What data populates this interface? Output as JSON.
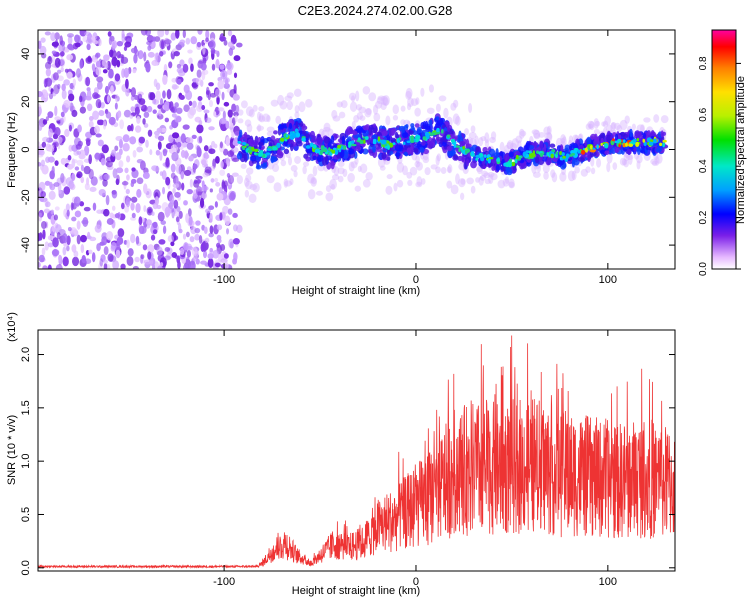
{
  "title": "C2E3.2024.274.02.00.G28",
  "chart_data": [
    {
      "type": "heatmap",
      "xlabel": "Height of straight line (km)",
      "ylabel": "Frequency (Hz)",
      "xlim": [
        -197,
        135
      ],
      "ylim": [
        -50,
        50
      ],
      "xticks": [
        -100,
        0,
        100
      ],
      "yticks": [
        -40,
        -20,
        0,
        20,
        40
      ],
      "colorbar": {
        "label": "Normalized spectral amplitude",
        "range": [
          0.0,
          0.93
        ],
        "ticks": [
          0.0,
          0.2,
          0.4,
          0.6,
          0.8
        ]
      },
      "trace_segments": [
        {
          "x": -92,
          "y": 3
        },
        {
          "x": -85,
          "y": -1
        },
        {
          "x": -78,
          "y": -2
        },
        {
          "x": -70,
          "y": 4
        },
        {
          "x": -62,
          "y": 7
        },
        {
          "x": -55,
          "y": 1
        },
        {
          "x": -45,
          "y": -1
        },
        {
          "x": -35,
          "y": 2
        },
        {
          "x": -25,
          "y": 5
        },
        {
          "x": -15,
          "y": 2
        },
        {
          "x": -5,
          "y": 4
        },
        {
          "x": 5,
          "y": 5
        },
        {
          "x": 12,
          "y": 8
        },
        {
          "x": 20,
          "y": 2
        },
        {
          "x": 30,
          "y": -3
        },
        {
          "x": 40,
          "y": -4
        },
        {
          "x": 48,
          "y": -6
        },
        {
          "x": 58,
          "y": -2
        },
        {
          "x": 68,
          "y": -1
        },
        {
          "x": 78,
          "y": -3
        },
        {
          "x": 88,
          "y": 0
        },
        {
          "x": 98,
          "y": 2
        },
        {
          "x": 108,
          "y": 3
        },
        {
          "x": 118,
          "y": 3
        },
        {
          "x": 130,
          "y": 3
        }
      ],
      "noise_region_x": [
        -197,
        -92
      ]
    },
    {
      "type": "line",
      "xlabel": "Height of straight line (km)",
      "ylabel": "SNR (10 * v/v)",
      "yscale_label": "(x10⁴)",
      "xlim": [
        -197,
        135
      ],
      "ylim": [
        -0.03,
        2.23
      ],
      "xticks": [
        -100,
        0,
        100
      ],
      "yticks": [
        0.0,
        0.5,
        1.0,
        1.5,
        2.0
      ],
      "color": "#ee3333",
      "envelope": [
        {
          "x": -197,
          "y": 0.01
        },
        {
          "x": -90,
          "y": 0.02
        },
        {
          "x": -80,
          "y": 0.05
        },
        {
          "x": -75,
          "y": 0.2
        },
        {
          "x": -68,
          "y": 0.3
        },
        {
          "x": -62,
          "y": 0.15
        },
        {
          "x": -55,
          "y": 0.05
        },
        {
          "x": -50,
          "y": 0.15
        },
        {
          "x": -42,
          "y": 0.3
        },
        {
          "x": -35,
          "y": 0.25
        },
        {
          "x": -28,
          "y": 0.3
        },
        {
          "x": -20,
          "y": 0.5
        },
        {
          "x": -10,
          "y": 0.6
        },
        {
          "x": 0,
          "y": 0.75
        },
        {
          "x": 10,
          "y": 0.9
        },
        {
          "x": 20,
          "y": 1.15
        },
        {
          "x": 30,
          "y": 1.2
        },
        {
          "x": 45,
          "y": 1.2
        },
        {
          "x": 60,
          "y": 1.25
        },
        {
          "x": 75,
          "y": 1.15
        },
        {
          "x": 90,
          "y": 1.1
        },
        {
          "x": 105,
          "y": 1.05
        },
        {
          "x": 120,
          "y": 1.1
        },
        {
          "x": 135,
          "y": 1.0
        }
      ]
    }
  ]
}
